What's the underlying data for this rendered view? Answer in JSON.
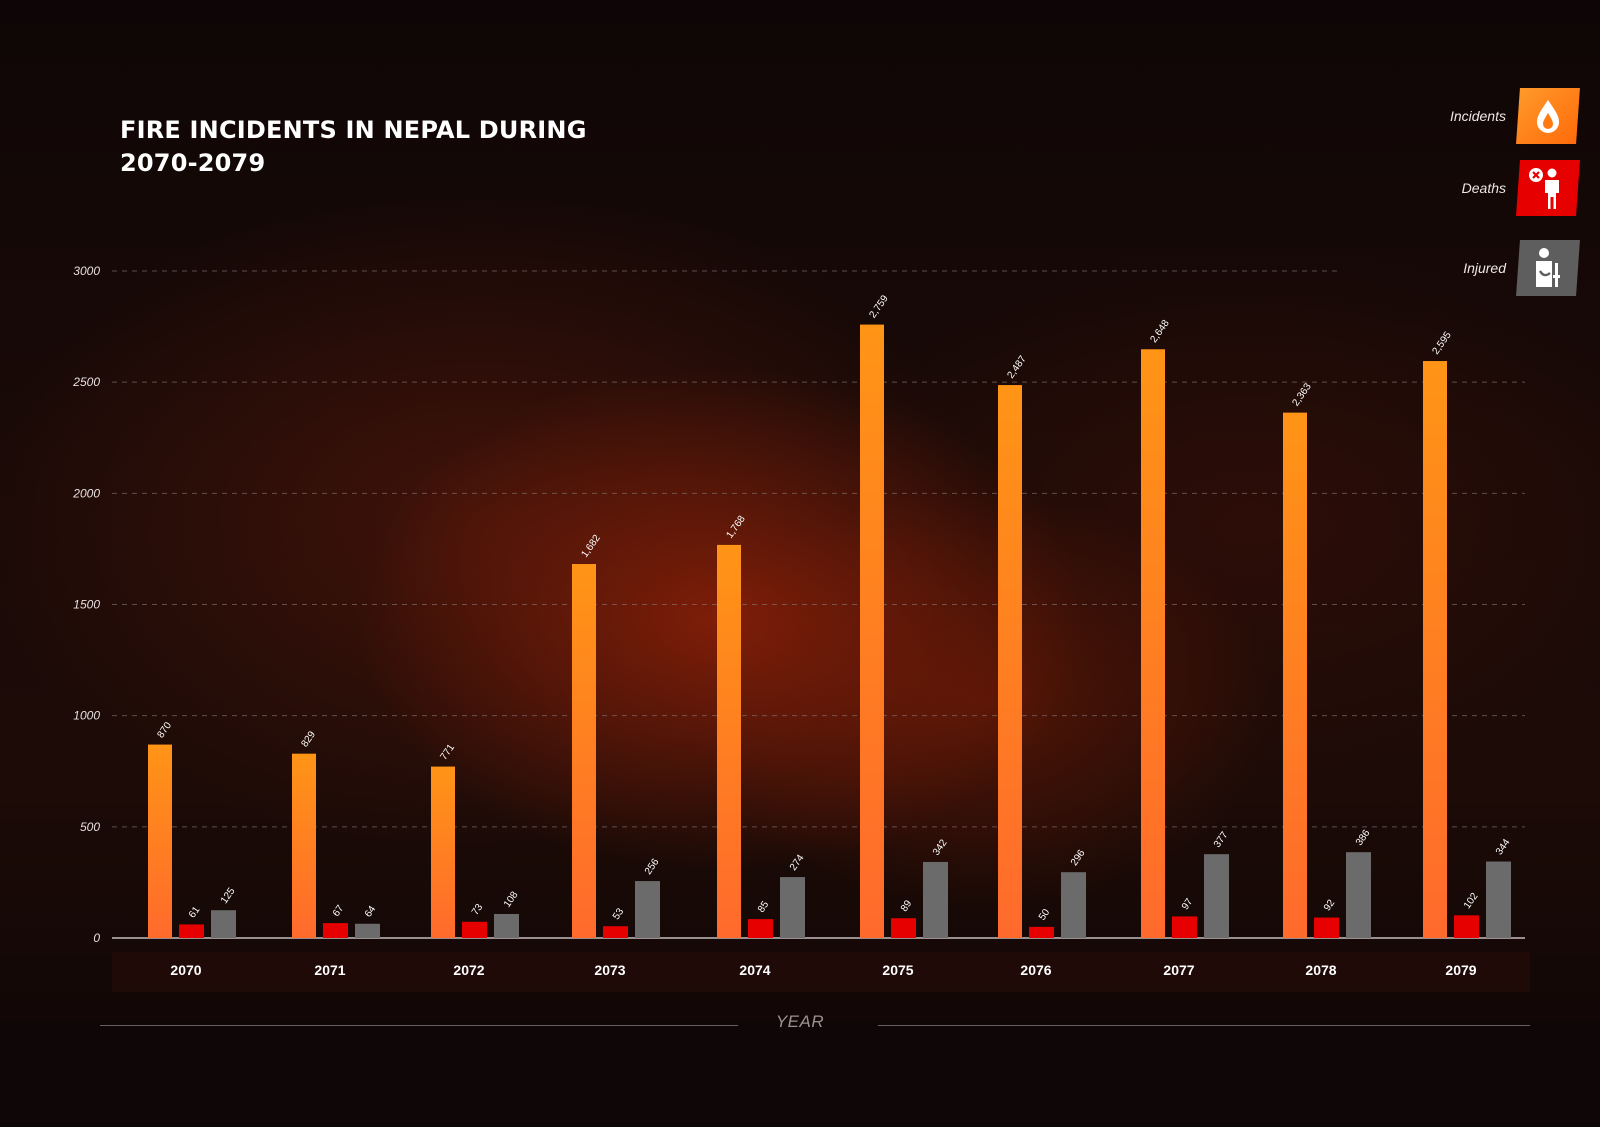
{
  "chart_data": {
    "type": "bar",
    "title": "FIRE INCIDENTS IN NEPAL DURING 2070-2079",
    "xlabel": "YEAR",
    "ylabel": "",
    "ylim": [
      0,
      3000
    ],
    "yticks": [
      0,
      500,
      1000,
      1500,
      2000,
      2500,
      3000
    ],
    "grid": true,
    "legend_position": "top-right",
    "categories": [
      "2070",
      "2071",
      "2072",
      "2073",
      "2074",
      "2075",
      "2076",
      "2077",
      "2078",
      "2079"
    ],
    "series": [
      {
        "name": "Incidents",
        "color": "#ff8a1e",
        "values": [
          870,
          829,
          771,
          1682,
          1768,
          2759,
          2487,
          2648,
          2363,
          2595
        ],
        "labels": [
          "870",
          "829",
          "771",
          "1,682",
          "1,768",
          "2,759",
          "2,487",
          "2,648",
          "2,363",
          "2,595"
        ]
      },
      {
        "name": "Deaths",
        "color": "#e60000",
        "values": [
          61,
          67,
          73,
          53,
          85,
          89,
          50,
          97,
          92,
          102
        ],
        "labels": [
          "61",
          "67",
          "73",
          "53",
          "85",
          "89",
          "50",
          "97",
          "92",
          "102"
        ]
      },
      {
        "name": "Injured",
        "color": "#6b6b6b",
        "values": [
          125,
          64,
          108,
          256,
          274,
          342,
          296,
          377,
          386,
          344
        ],
        "labels": [
          "125",
          "64",
          "108",
          "256",
          "274",
          "342",
          "296",
          "377",
          "386",
          "344"
        ]
      }
    ]
  },
  "title_lines": [
    "FIRE INCIDENTS IN NEPAL DURING",
    "2070-2079"
  ],
  "legend": [
    {
      "label": "Incidents",
      "icon": "flame-drop-icon",
      "color": "#ff7a10"
    },
    {
      "label": "Deaths",
      "icon": "person-death-icon",
      "color": "#e60000"
    },
    {
      "label": "Injured",
      "icon": "person-injured-icon",
      "color": "#5e5e5e"
    }
  ]
}
